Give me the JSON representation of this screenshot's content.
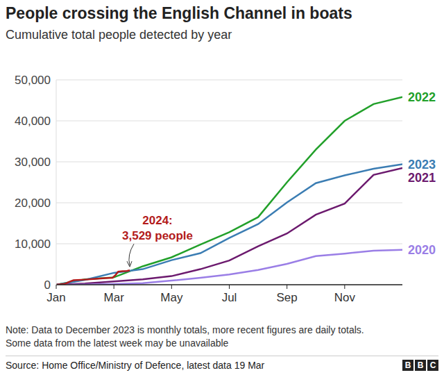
{
  "chart_data": {
    "type": "line",
    "title": "People crossing the English Channel in boats",
    "subtitle": "Cumulative total people detected by year",
    "x": [
      0,
      1,
      2,
      3,
      4,
      5,
      6,
      7,
      8,
      9,
      10,
      11,
      12
    ],
    "xlim": [
      0,
      12
    ],
    "xticks": [
      {
        "value": 0,
        "label": "Jan"
      },
      {
        "value": 2,
        "label": "Mar"
      },
      {
        "value": 4,
        "label": "May"
      },
      {
        "value": 6,
        "label": "Jul"
      },
      {
        "value": 8,
        "label": "Sep"
      },
      {
        "value": 10,
        "label": "Nov"
      }
    ],
    "ylim": [
      0,
      50000
    ],
    "yticks": [
      0,
      {
        "value": 10000,
        "label": "10,000"
      },
      {
        "value": 20000,
        "label": "20,000"
      },
      {
        "value": 30000,
        "label": "30,000"
      },
      {
        "value": 40000,
        "label": "40,000"
      },
      {
        "value": 50000,
        "label": "50,000"
      }
    ],
    "grid": true,
    "series": [
      {
        "name": "2022",
        "color": "#22a02a",
        "values": [
          0,
          1300,
          1800,
          4500,
          6700,
          9800,
          12800,
          16500,
          25000,
          33000,
          40000,
          44100,
          45800
        ]
      },
      {
        "name": "2023",
        "color": "#3b7db3",
        "values": [
          0,
          1200,
          2900,
          3800,
          6000,
          7700,
          11400,
          14800,
          20100,
          24800,
          26700,
          28300,
          29400
        ]
      },
      {
        "name": "2021",
        "color": "#6c1a6e",
        "values": [
          0,
          300,
          800,
          1300,
          2100,
          3800,
          5900,
          9400,
          12500,
          17100,
          19800,
          26800,
          28500
        ]
      },
      {
        "name": "2020",
        "color": "#9a7ee6",
        "values": [
          0,
          50,
          150,
          400,
          1000,
          1700,
          2500,
          3600,
          5100,
          7000,
          7600,
          8300,
          8500
        ]
      },
      {
        "name": "2024",
        "color": "#b31b1b",
        "x": [
          0,
          0.3,
          0.45,
          0.6,
          1.0,
          1.3,
          1.7,
          1.95,
          2.05,
          2.15,
          2.3,
          2.45,
          2.55
        ],
        "values": [
          0,
          200,
          700,
          1100,
          1250,
          1400,
          1600,
          1700,
          2300,
          3200,
          3300,
          3350,
          3529
        ]
      }
    ],
    "annotation": {
      "series": "2024",
      "text": [
        "2024:",
        "3,529 people"
      ]
    },
    "note": [
      "Note: Data to December 2023 is monthly totals, more recent figures are daily totals.",
      "Some data from the latest week may be unavailable"
    ],
    "source": "Source: Home Office/Ministry of Defence, latest data 19 Mar",
    "logo": [
      "B",
      "B",
      "C"
    ]
  }
}
